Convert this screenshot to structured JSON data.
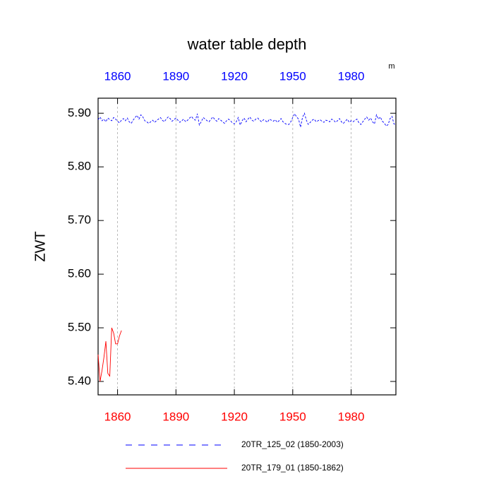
{
  "chart_data": {
    "type": "line",
    "title": "water table depth",
    "units": "m",
    "y_label": "ZWT",
    "xlim": [
      1850,
      2003
    ],
    "ylim": [
      5.375,
      5.928
    ],
    "xticks": [
      1860,
      1890,
      1920,
      1950,
      1980
    ],
    "yticks": [
      {
        "value": 5.4,
        "label": "5.40"
      },
      {
        "value": 5.5,
        "label": "5.50"
      },
      {
        "value": 5.6,
        "label": "5.60"
      },
      {
        "value": 5.7,
        "label": "5.70"
      },
      {
        "value": 5.8,
        "label": "5.80"
      },
      {
        "value": 5.9,
        "label": "5.90"
      }
    ],
    "grid": "x",
    "xtick_label_colors": {
      "top": "#0000ff",
      "bottom": "#ff0000"
    },
    "series": [
      {
        "name": "20TR_125_02 (1850-2003)",
        "color": "#0000ff",
        "dash": true,
        "x": [
          1850,
          1851,
          1852,
          1853,
          1854,
          1855,
          1856,
          1857,
          1858,
          1859,
          1860,
          1861,
          1862,
          1863,
          1864,
          1865,
          1866,
          1867,
          1868,
          1869,
          1870,
          1871,
          1872,
          1873,
          1874,
          1875,
          1876,
          1877,
          1878,
          1879,
          1880,
          1881,
          1882,
          1883,
          1884,
          1885,
          1886,
          1887,
          1888,
          1889,
          1890,
          1891,
          1892,
          1893,
          1894,
          1895,
          1896,
          1897,
          1898,
          1899,
          1900,
          1901,
          1902,
          1903,
          1904,
          1905,
          1906,
          1907,
          1908,
          1909,
          1910,
          1911,
          1912,
          1913,
          1914,
          1915,
          1916,
          1917,
          1918,
          1919,
          1920,
          1921,
          1922,
          1923,
          1924,
          1925,
          1926,
          1927,
          1928,
          1929,
          1930,
          1931,
          1932,
          1933,
          1934,
          1935,
          1936,
          1937,
          1938,
          1939,
          1940,
          1941,
          1942,
          1943,
          1944,
          1945,
          1946,
          1947,
          1948,
          1949,
          1950,
          1951,
          1952,
          1953,
          1954,
          1955,
          1956,
          1957,
          1958,
          1959,
          1960,
          1961,
          1962,
          1963,
          1964,
          1965,
          1966,
          1967,
          1968,
          1969,
          1970,
          1971,
          1972,
          1973,
          1974,
          1975,
          1976,
          1977,
          1978,
          1979,
          1980,
          1981,
          1982,
          1983,
          1984,
          1985,
          1986,
          1987,
          1988,
          1989,
          1990,
          1991,
          1992,
          1993,
          1994,
          1995,
          1996,
          1997,
          1998,
          1999,
          2000,
          2001,
          2002,
          2003
        ],
        "values": [
          5.888,
          5.893,
          5.886,
          5.889,
          5.884,
          5.891,
          5.888,
          5.886,
          5.892,
          5.889,
          5.885,
          5.882,
          5.887,
          5.89,
          5.886,
          5.891,
          5.884,
          5.881,
          5.887,
          5.892,
          5.896,
          5.889,
          5.897,
          5.893,
          5.886,
          5.884,
          5.881,
          5.884,
          5.887,
          5.883,
          5.886,
          5.889,
          5.892,
          5.887,
          5.884,
          5.889,
          5.893,
          5.89,
          5.885,
          5.888,
          5.891,
          5.887,
          5.883,
          5.886,
          5.889,
          5.884,
          5.887,
          5.891,
          5.894,
          5.889,
          5.887,
          5.899,
          5.878,
          5.884,
          5.892,
          5.889,
          5.886,
          5.884,
          5.889,
          5.893,
          5.888,
          5.885,
          5.89,
          5.887,
          5.884,
          5.881,
          5.886,
          5.889,
          5.886,
          5.882,
          5.88,
          5.884,
          5.892,
          5.878,
          5.886,
          5.891,
          5.884,
          5.889,
          5.893,
          5.887,
          5.885,
          5.889,
          5.891,
          5.887,
          5.884,
          5.888,
          5.886,
          5.883,
          5.889,
          5.887,
          5.885,
          5.888,
          5.883,
          5.886,
          5.89,
          5.884,
          5.881,
          5.879,
          5.879,
          5.884,
          5.892,
          5.899,
          5.893,
          5.889,
          5.874,
          5.892,
          5.9,
          5.887,
          5.879,
          5.883,
          5.887,
          5.889,
          5.884,
          5.886,
          5.888,
          5.885,
          5.883,
          5.887,
          5.886,
          5.884,
          5.889,
          5.887,
          5.883,
          5.886,
          5.89,
          5.884,
          5.881,
          5.885,
          5.889,
          5.883,
          5.886,
          5.884,
          5.887,
          5.889,
          5.882,
          5.879,
          5.884,
          5.889,
          5.893,
          5.887,
          5.891,
          5.884,
          5.88,
          5.897,
          5.889,
          5.893,
          5.885,
          5.882,
          5.876,
          5.879,
          5.89,
          5.894,
          5.88,
          5.878
        ]
      },
      {
        "name": "20TR_179_01 (1850-1862)",
        "color": "#ff0000",
        "dash": false,
        "x": [
          1850,
          1851,
          1852,
          1853,
          1854,
          1855,
          1856,
          1857,
          1858,
          1859,
          1860,
          1861,
          1862
        ],
        "values": [
          5.45,
          5.4,
          5.42,
          5.445,
          5.475,
          5.415,
          5.41,
          5.5,
          5.49,
          5.47,
          5.47,
          5.485,
          5.495
        ]
      }
    ]
  }
}
